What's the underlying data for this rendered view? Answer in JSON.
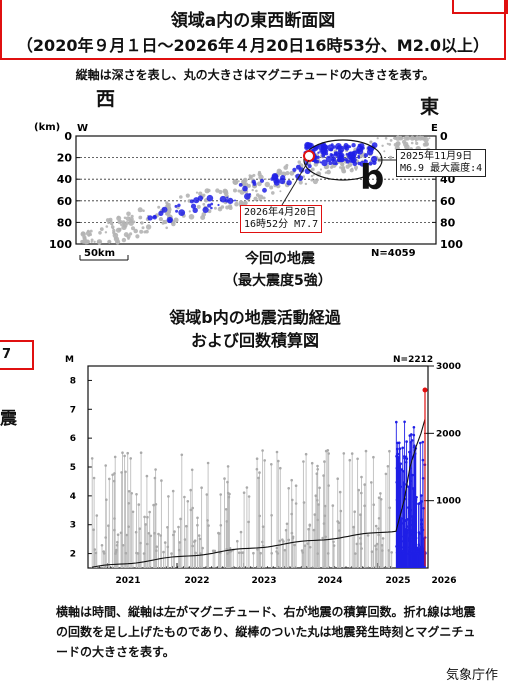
{
  "title": {
    "line1": "領域a内の東西断面図",
    "line2": "（2020年９月１日～2026年４月20日16時53分、M2.0以上）"
  },
  "note": "縦軸は深さを表し、丸の大きさはマグニチュードの大きさを表す。",
  "direction": {
    "west": "西",
    "east": "東"
  },
  "section": {
    "unit_label": "(km)",
    "w": "W",
    "e": "E",
    "depth_ticks": [
      "0",
      "20",
      "40",
      "60",
      "80",
      "100"
    ],
    "scale_label": "50km",
    "n_label": "N=4059",
    "region_b_label": "b",
    "annotation_right_line1": "2025年11月9日",
    "annotation_right_line2": "M6.9 最大震度:4",
    "annotation_main_line1": "2026年4月20日",
    "annotation_main_line2": "16時52分 M7.7",
    "main_label_line1": "今回の地震",
    "main_label_line2": "（最大震度5強）"
  },
  "side": {
    "box_text": "7",
    "text2": "震"
  },
  "activity": {
    "title_line1": "領域b内の地震活動経過",
    "title_line2": "および回数積算図",
    "m_label": "M",
    "n_label": "N=2212"
  },
  "caption": "横軸は時間、縦軸は左がマグニチュード、右が地震の積算回数。折れ線は地震の回数を足し上げたものであり、縦棒のついた丸は地震発生時刻とマグニチュードの大きさを表す。",
  "agency": "気象庁作",
  "chart_data": [
    {
      "type": "scatter",
      "title": "領域a内の東西断面図",
      "xlabel": "W — E",
      "ylabel": "(km)",
      "ylim": [
        100,
        0
      ],
      "y_ticks": [
        0,
        20,
        40,
        60,
        80,
        100
      ],
      "grid": true,
      "series": [
        {
          "values": []
        },
        {
          "values": []
        }
      ],
      "annotations": [
        "2025年11月9日 M6.9 最大震度:4",
        "2026年4月20日 16時52分 M7.7",
        "今回の地震（最大震度5強）",
        "N=4059"
      ]
    },
    {
      "type": "bar",
      "title": "領域b内の地震活動経過 および回数積算図",
      "ylabel": "M",
      "ylim": [
        1.5,
        8.5
      ],
      "y_ticks": [
        2,
        3,
        4,
        5,
        6,
        7,
        8
      ],
      "y2_ticks": [
        1000,
        2000,
        3000
      ],
      "y2lim": [
        0,
        3000
      ],
      "x_ticks": [
        "2021",
        "2022",
        "2023",
        "2024",
        "2025",
        "2026"
      ],
      "series": [
        {
          "values": []
        },
        {
          "values": []
        },
        {
          "values": [
            2212
          ]
        }
      ]
    }
  ]
}
